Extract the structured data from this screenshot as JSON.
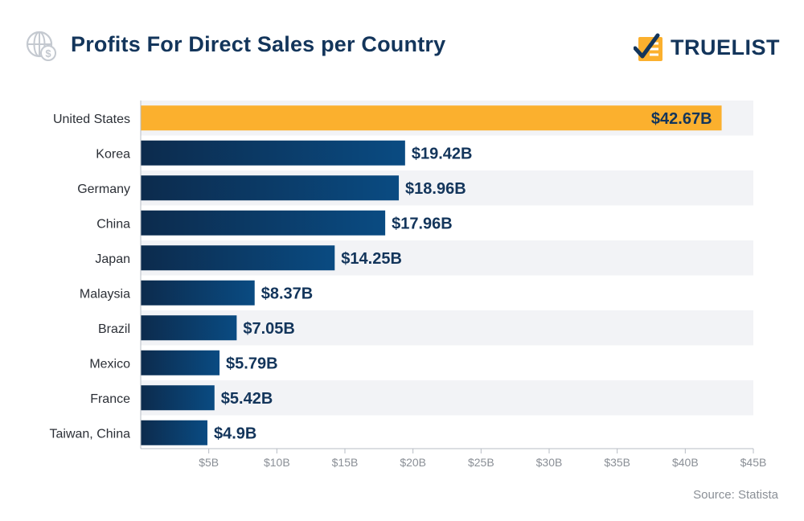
{
  "header": {
    "title": "Profits For Direct Sales per Country",
    "logo_text": "TRUELIST"
  },
  "colors": {
    "title": "#13355b",
    "highlight_bar": "#fbb02e",
    "bar_dark": "#0c2b4d",
    "bar_light": "#0a4b82",
    "stripe": "#f2f3f6",
    "value_text": "#13355b",
    "axis_text": "#8a8f96"
  },
  "chart_data": {
    "type": "bar",
    "orientation": "horizontal",
    "categories": [
      "United States",
      "Korea",
      "Germany",
      "China",
      "Japan",
      "Malaysia",
      "Brazil",
      "Mexico",
      "France",
      "Taiwan, China"
    ],
    "values": [
      42.67,
      19.42,
      18.96,
      17.96,
      14.25,
      8.37,
      7.05,
      5.79,
      5.42,
      4.9
    ],
    "value_labels": [
      "$42.67B",
      "$19.42B",
      "$18.96B",
      "$17.96B",
      "$14.25B",
      "$8.37B",
      "$7.05B",
      "$5.79B",
      "$5.42B",
      "$4.9B"
    ],
    "highlight_category": "United States",
    "xlim": [
      0,
      45
    ],
    "x_ticks": [
      5,
      10,
      15,
      20,
      25,
      30,
      35,
      40,
      45
    ],
    "x_tick_labels": [
      "$5B",
      "$10B",
      "$15B",
      "$20B",
      "$25B",
      "$30B",
      "$35B",
      "$40B",
      "$45B"
    ],
    "title": "Profits For Direct Sales per Country",
    "xlabel": "",
    "ylabel": "",
    "grid": false
  },
  "footer": {
    "source": "Source: Statista"
  }
}
